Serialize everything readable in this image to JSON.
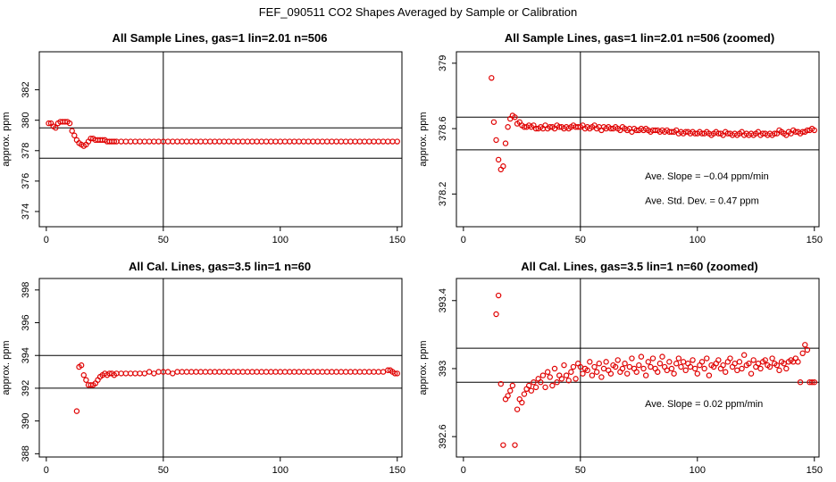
{
  "page_title": "FEF_090511  CO2 Shapes Averaged by Sample or Calibration",
  "chart_data": [
    {
      "type": "scatter",
      "title": "All Sample Lines, gas=1 lin=2.01 n=506",
      "xlabel": "",
      "ylabel": "approx. ppm",
      "xlim": [
        -3,
        152
      ],
      "ylim": [
        373,
        384.5
      ],
      "xticks": [
        0,
        50,
        100,
        150
      ],
      "yticks": [
        374,
        376,
        378,
        380,
        382
      ],
      "vline": 50,
      "hlines": [
        377.5,
        379.5
      ],
      "annotations": [],
      "x": [
        1,
        2,
        3,
        4,
        5,
        6,
        7,
        8,
        9,
        10,
        11,
        12,
        13,
        14,
        15,
        16,
        17,
        18,
        19,
        20,
        21,
        22,
        23,
        24,
        25,
        26,
        27,
        28,
        29,
        30,
        32,
        34,
        36,
        38,
        40,
        42,
        44,
        46,
        48,
        50,
        52,
        54,
        56,
        58,
        60,
        62,
        64,
        66,
        68,
        70,
        72,
        74,
        76,
        78,
        80,
        82,
        84,
        86,
        88,
        90,
        92,
        94,
        96,
        98,
        100,
        102,
        104,
        106,
        108,
        110,
        112,
        114,
        116,
        118,
        120,
        122,
        124,
        126,
        128,
        130,
        132,
        134,
        136,
        138,
        140,
        142,
        144,
        146,
        148,
        150
      ],
      "y": [
        379.8,
        379.8,
        379.6,
        379.5,
        379.8,
        379.9,
        379.9,
        379.9,
        379.9,
        379.8,
        379.3,
        379.0,
        378.7,
        378.5,
        378.4,
        378.3,
        378.4,
        378.6,
        378.8,
        378.8,
        378.7,
        378.7,
        378.7,
        378.7,
        378.7,
        378.6,
        378.6,
        378.6,
        378.6,
        378.6,
        378.6,
        378.6,
        378.6,
        378.6,
        378.6,
        378.6,
        378.6,
        378.6,
        378.6,
        378.6,
        378.6,
        378.6,
        378.6,
        378.6,
        378.6,
        378.6,
        378.6,
        378.6,
        378.6,
        378.6,
        378.6,
        378.6,
        378.6,
        378.6,
        378.6,
        378.6,
        378.6,
        378.6,
        378.6,
        378.6,
        378.6,
        378.6,
        378.6,
        378.6,
        378.6,
        378.6,
        378.6,
        378.6,
        378.6,
        378.6,
        378.6,
        378.6,
        378.6,
        378.6,
        378.6,
        378.6,
        378.6,
        378.6,
        378.6,
        378.6,
        378.6,
        378.6,
        378.6,
        378.6,
        378.6,
        378.6,
        378.6,
        378.6,
        378.6,
        378.6
      ]
    },
    {
      "type": "scatter",
      "title": "All Sample Lines, gas=1 lin=2.01 n=506 (zoomed)",
      "xlabel": "",
      "ylabel": "approx. ppm",
      "xlim": [
        -3,
        152
      ],
      "ylim": [
        378.0,
        379.07
      ],
      "xticks": [
        0,
        50,
        100,
        150
      ],
      "yticks": [
        378.2,
        378.6,
        379.0
      ],
      "vline": 50,
      "hlines": [
        378.47,
        378.67
      ],
      "annotations": [
        "Ave. Slope =  −0.04  ppm/min",
        "Ave. Std. Dev. =  0.47  ppm"
      ],
      "x": [
        12,
        13,
        14,
        15,
        16,
        17,
        18,
        19,
        20,
        21,
        22,
        23,
        24,
        25,
        26,
        27,
        28,
        29,
        30,
        31,
        32,
        33,
        34,
        35,
        36,
        37,
        38,
        39,
        40,
        41,
        42,
        43,
        44,
        45,
        46,
        47,
        48,
        49,
        50,
        51,
        52,
        53,
        54,
        55,
        56,
        57,
        58,
        59,
        60,
        61,
        62,
        63,
        64,
        65,
        66,
        67,
        68,
        69,
        70,
        71,
        72,
        73,
        74,
        75,
        76,
        77,
        78,
        79,
        80,
        81,
        82,
        83,
        84,
        85,
        86,
        87,
        88,
        89,
        90,
        91,
        92,
        93,
        94,
        95,
        96,
        97,
        98,
        99,
        100,
        101,
        102,
        103,
        104,
        105,
        106,
        107,
        108,
        109,
        110,
        111,
        112,
        113,
        114,
        115,
        116,
        117,
        118,
        119,
        120,
        121,
        122,
        123,
        124,
        125,
        126,
        127,
        128,
        129,
        130,
        131,
        132,
        133,
        134,
        135,
        136,
        137,
        138,
        139,
        140,
        141,
        142,
        143,
        144,
        145,
        146,
        147,
        148,
        149,
        150
      ],
      "y": [
        378.91,
        378.64,
        378.53,
        378.41,
        378.35,
        378.37,
        378.51,
        378.61,
        378.66,
        378.68,
        378.67,
        378.63,
        378.64,
        378.62,
        378.61,
        378.61,
        378.62,
        378.61,
        378.62,
        378.6,
        378.6,
        378.61,
        378.6,
        378.62,
        378.6,
        378.61,
        378.61,
        378.6,
        378.62,
        378.61,
        378.61,
        378.6,
        378.61,
        378.6,
        378.61,
        378.62,
        378.61,
        378.61,
        378.61,
        378.62,
        378.6,
        378.61,
        378.6,
        378.61,
        378.62,
        378.6,
        378.61,
        378.59,
        378.61,
        378.6,
        378.61,
        378.6,
        378.6,
        378.61,
        378.6,
        378.59,
        378.61,
        378.6,
        378.59,
        378.6,
        378.58,
        378.6,
        378.59,
        378.59,
        378.6,
        378.59,
        378.6,
        378.59,
        378.58,
        378.59,
        378.59,
        378.59,
        378.58,
        378.59,
        378.58,
        378.59,
        378.58,
        378.58,
        378.58,
        378.59,
        378.57,
        378.58,
        378.57,
        378.58,
        378.58,
        378.57,
        378.58,
        378.57,
        378.57,
        378.58,
        378.57,
        378.57,
        378.58,
        378.57,
        378.56,
        378.57,
        378.58,
        378.57,
        378.57,
        378.56,
        378.58,
        378.57,
        378.57,
        378.56,
        378.57,
        378.56,
        378.57,
        378.58,
        378.56,
        378.57,
        378.56,
        378.57,
        378.56,
        378.57,
        378.58,
        378.56,
        378.57,
        378.57,
        378.56,
        378.57,
        378.56,
        378.57,
        378.57,
        378.59,
        378.58,
        378.57,
        378.56,
        378.58,
        378.57,
        378.59,
        378.58,
        378.58,
        378.57,
        378.58,
        378.58,
        378.59,
        378.59,
        378.6,
        378.59
      ]
    },
    {
      "type": "scatter",
      "title": "All Cal. Lines, gas=3.5 lin=1 n=60",
      "xlabel": "",
      "ylabel": "approx. ppm",
      "xlim": [
        -3,
        152
      ],
      "ylim": [
        387.8,
        398.7
      ],
      "xticks": [
        0,
        50,
        100,
        150
      ],
      "yticks": [
        388,
        390,
        392,
        394,
        396,
        398
      ],
      "vline": 50,
      "hlines": [
        392.0,
        394.0
      ],
      "annotations": [],
      "x": [
        13,
        14,
        15,
        16,
        17,
        18,
        19,
        20,
        21,
        22,
        23,
        24,
        25,
        26,
        27,
        28,
        29,
        30,
        32,
        34,
        36,
        38,
        40,
        42,
        44,
        46,
        48,
        50,
        52,
        54,
        56,
        58,
        60,
        62,
        64,
        66,
        68,
        70,
        72,
        74,
        76,
        78,
        80,
        82,
        84,
        86,
        88,
        90,
        92,
        94,
        96,
        98,
        100,
        102,
        104,
        106,
        108,
        110,
        112,
        114,
        116,
        118,
        120,
        122,
        124,
        126,
        128,
        130,
        132,
        134,
        136,
        138,
        140,
        142,
        144,
        146,
        147,
        148,
        149,
        150
      ],
      "y": [
        390.6,
        393.3,
        393.4,
        392.8,
        392.5,
        392.2,
        392.2,
        392.2,
        392.3,
        392.5,
        392.7,
        392.8,
        392.9,
        392.8,
        392.9,
        392.9,
        392.8,
        392.9,
        392.9,
        392.9,
        392.9,
        392.9,
        392.9,
        392.9,
        393.0,
        392.9,
        393.0,
        393.0,
        393.0,
        392.9,
        393.0,
        393.0,
        393.0,
        393.0,
        393.0,
        393.0,
        393.0,
        393.0,
        393.0,
        393.0,
        393.0,
        393.0,
        393.0,
        393.0,
        393.0,
        393.0,
        393.0,
        393.0,
        393.0,
        393.0,
        393.0,
        393.0,
        393.0,
        393.0,
        393.0,
        393.0,
        393.0,
        393.0,
        393.0,
        393.0,
        393.0,
        393.0,
        393.0,
        393.0,
        393.0,
        393.0,
        393.0,
        393.0,
        393.0,
        393.0,
        393.0,
        393.0,
        393.0,
        393.0,
        393.0,
        393.1,
        393.1,
        393.0,
        392.9,
        392.9
      ]
    },
    {
      "type": "scatter",
      "title": "All Cal. Lines, gas=3.5 lin=1 n=60 (zoomed)",
      "xlabel": "",
      "ylabel": "approx. ppm",
      "xlim": [
        -3,
        152
      ],
      "ylim": [
        392.48,
        393.53
      ],
      "xticks": [
        0,
        50,
        100,
        150
      ],
      "yticks": [
        392.6,
        393.0,
        393.4
      ],
      "vline": 50,
      "hlines": [
        392.92,
        393.12
      ],
      "annotations": [
        "Ave. Slope =  0.02  ppm/min"
      ],
      "x": [
        14,
        15,
        16,
        17,
        18,
        19,
        20,
        21,
        22,
        23,
        24,
        25,
        26,
        27,
        28,
        29,
        30,
        31,
        32,
        33,
        34,
        35,
        36,
        37,
        38,
        39,
        40,
        41,
        42,
        43,
        44,
        45,
        46,
        47,
        48,
        49,
        50,
        51,
        52,
        53,
        54,
        55,
        56,
        57,
        58,
        59,
        60,
        61,
        62,
        63,
        64,
        65,
        66,
        67,
        68,
        69,
        70,
        71,
        72,
        73,
        74,
        75,
        76,
        77,
        78,
        79,
        80,
        81,
        82,
        83,
        84,
        85,
        86,
        87,
        88,
        89,
        90,
        91,
        92,
        93,
        94,
        95,
        96,
        97,
        98,
        99,
        100,
        101,
        102,
        103,
        104,
        105,
        106,
        107,
        108,
        109,
        110,
        111,
        112,
        113,
        114,
        115,
        116,
        117,
        118,
        119,
        120,
        121,
        122,
        123,
        124,
        125,
        126,
        127,
        128,
        129,
        130,
        131,
        132,
        133,
        134,
        135,
        136,
        137,
        138,
        139,
        140,
        141,
        142,
        143,
        144,
        145,
        146,
        147,
        148,
        149,
        150
      ],
      "y": [
        393.32,
        393.43,
        392.91,
        392.55,
        392.82,
        392.84,
        392.87,
        392.9,
        392.55,
        392.76,
        392.82,
        392.8,
        392.85,
        392.88,
        392.9,
        392.87,
        392.92,
        392.89,
        392.94,
        392.92,
        392.96,
        392.89,
        392.98,
        392.95,
        392.9,
        393.0,
        392.92,
        392.96,
        392.94,
        393.02,
        392.96,
        392.93,
        392.98,
        393.01,
        392.94,
        393.03,
        393.01,
        392.97,
        393.0,
        392.99,
        393.04,
        392.96,
        393.01,
        392.98,
        393.03,
        392.95,
        393.0,
        393.04,
        392.99,
        392.97,
        393.02,
        393.01,
        393.05,
        392.98,
        393.0,
        393.03,
        392.97,
        393.01,
        393.06,
        393.0,
        392.98,
        393.02,
        393.07,
        393.0,
        392.96,
        393.04,
        393.01,
        393.06,
        393.0,
        392.98,
        393.03,
        393.07,
        393.01,
        392.99,
        393.04,
        393.0,
        392.97,
        393.03,
        393.06,
        393.01,
        393.04,
        392.99,
        393.03,
        393.01,
        393.05,
        393.0,
        392.97,
        393.02,
        393.04,
        393.0,
        393.06,
        392.96,
        393.02,
        393.01,
        393.03,
        393.05,
        393.0,
        393.02,
        392.98,
        393.04,
        393.06,
        393.01,
        393.03,
        392.99,
        393.04,
        393.0,
        393.08,
        393.02,
        393.03,
        392.97,
        393.05,
        393.01,
        393.03,
        393.0,
        393.04,
        393.05,
        393.02,
        393.01,
        393.06,
        393.03,
        393.02,
        392.99,
        393.04,
        393.03,
        393.0,
        393.04,
        393.05,
        393.04,
        393.06,
        393.04,
        392.92,
        393.09,
        393.14,
        393.11,
        392.92,
        392.92,
        392.92
      ]
    }
  ]
}
